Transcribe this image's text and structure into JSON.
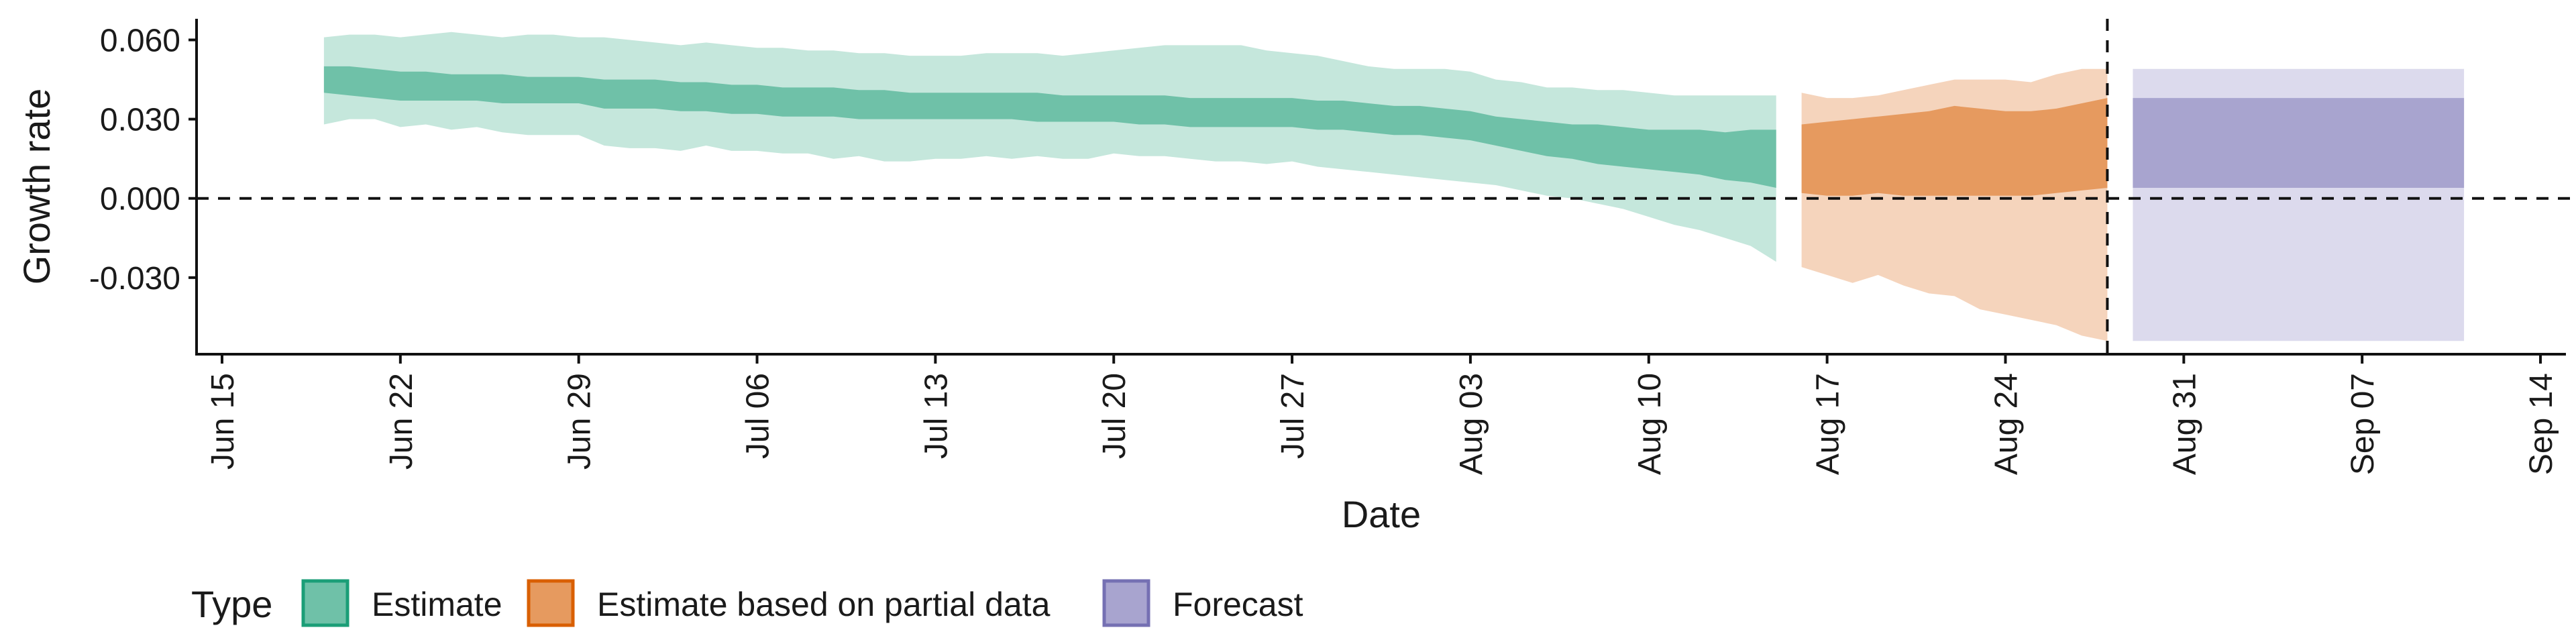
{
  "chart_data": {
    "type": "area",
    "xlabel": "Date",
    "ylabel": "Growth rate",
    "x_ticks": [
      "Jun 15",
      "Jun 22",
      "Jun 29",
      "Jul 06",
      "Jul 13",
      "Jul 20",
      "Jul 27",
      "Aug 03",
      "Aug 10",
      "Aug 17",
      "Aug 24",
      "Aug 31",
      "Sep 07",
      "Sep 14"
    ],
    "y_ticks": [
      "0.060",
      "0.030",
      "0.000",
      "-0.030"
    ],
    "xlim": [
      "2020-06-14",
      "2020-09-15"
    ],
    "ylim": [
      -0.059,
      0.068
    ],
    "hline_y": 0,
    "vline_date": "2020-08-28",
    "grid": false,
    "legend": {
      "title": "Type",
      "position": "bottom-left",
      "entries": [
        {
          "label": "Estimate",
          "fill": "#6fc1a8",
          "border": "#1b9e77"
        },
        {
          "label": "Estimate based on partial data",
          "fill": "#e69a5f",
          "border": "#d95f02"
        },
        {
          "label": "Forecast",
          "fill": "#a8a4cf",
          "border": "#7570b3"
        }
      ]
    },
    "series": [
      {
        "name": "Estimate",
        "colors": {
          "inner": "#6fc1a8",
          "outer": "#c5e7dc"
        },
        "x": [
          "2020-06-19",
          "2020-06-20",
          "2020-06-21",
          "2020-06-22",
          "2020-06-23",
          "2020-06-24",
          "2020-06-25",
          "2020-06-26",
          "2020-06-27",
          "2020-06-28",
          "2020-06-29",
          "2020-06-30",
          "2020-07-01",
          "2020-07-02",
          "2020-07-03",
          "2020-07-04",
          "2020-07-05",
          "2020-07-06",
          "2020-07-07",
          "2020-07-08",
          "2020-07-09",
          "2020-07-10",
          "2020-07-11",
          "2020-07-12",
          "2020-07-13",
          "2020-07-14",
          "2020-07-15",
          "2020-07-16",
          "2020-07-17",
          "2020-07-18",
          "2020-07-19",
          "2020-07-20",
          "2020-07-21",
          "2020-07-22",
          "2020-07-23",
          "2020-07-24",
          "2020-07-25",
          "2020-07-26",
          "2020-07-27",
          "2020-07-28",
          "2020-07-29",
          "2020-07-30",
          "2020-07-31",
          "2020-08-01",
          "2020-08-02",
          "2020-08-03",
          "2020-08-04",
          "2020-08-05",
          "2020-08-06",
          "2020-08-07",
          "2020-08-08",
          "2020-08-09",
          "2020-08-10",
          "2020-08-11",
          "2020-08-12",
          "2020-08-13",
          "2020-08-14",
          "2020-08-15"
        ],
        "lower_90": [
          0.028,
          0.03,
          0.03,
          0.027,
          0.028,
          0.026,
          0.027,
          0.025,
          0.024,
          0.024,
          0.024,
          0.02,
          0.019,
          0.019,
          0.018,
          0.02,
          0.018,
          0.018,
          0.017,
          0.017,
          0.015,
          0.016,
          0.014,
          0.014,
          0.015,
          0.015,
          0.016,
          0.015,
          0.016,
          0.015,
          0.015,
          0.017,
          0.016,
          0.016,
          0.015,
          0.014,
          0.014,
          0.013,
          0.014,
          0.012,
          0.011,
          0.01,
          0.009,
          0.008,
          0.007,
          0.006,
          0.005,
          0.003,
          0.001,
          0.0,
          -0.002,
          -0.004,
          -0.007,
          -0.01,
          -0.012,
          -0.015,
          -0.018,
          -0.024
        ],
        "lower_50": [
          0.04,
          0.039,
          0.038,
          0.037,
          0.037,
          0.037,
          0.037,
          0.036,
          0.036,
          0.036,
          0.036,
          0.034,
          0.034,
          0.034,
          0.033,
          0.033,
          0.032,
          0.032,
          0.031,
          0.031,
          0.031,
          0.03,
          0.03,
          0.03,
          0.03,
          0.03,
          0.03,
          0.03,
          0.029,
          0.029,
          0.029,
          0.029,
          0.028,
          0.028,
          0.027,
          0.027,
          0.027,
          0.027,
          0.027,
          0.026,
          0.026,
          0.025,
          0.024,
          0.024,
          0.023,
          0.022,
          0.02,
          0.018,
          0.016,
          0.015,
          0.013,
          0.012,
          0.011,
          0.01,
          0.009,
          0.007,
          0.006,
          0.004
        ],
        "upper_50": [
          0.05,
          0.05,
          0.049,
          0.048,
          0.048,
          0.047,
          0.047,
          0.047,
          0.046,
          0.046,
          0.046,
          0.045,
          0.045,
          0.045,
          0.044,
          0.044,
          0.043,
          0.043,
          0.042,
          0.042,
          0.042,
          0.041,
          0.041,
          0.04,
          0.04,
          0.04,
          0.04,
          0.04,
          0.04,
          0.039,
          0.039,
          0.039,
          0.039,
          0.039,
          0.038,
          0.038,
          0.038,
          0.038,
          0.038,
          0.037,
          0.037,
          0.036,
          0.035,
          0.035,
          0.034,
          0.033,
          0.031,
          0.03,
          0.029,
          0.028,
          0.028,
          0.027,
          0.026,
          0.026,
          0.026,
          0.025,
          0.026,
          0.026
        ],
        "upper_90": [
          0.061,
          0.062,
          0.062,
          0.061,
          0.062,
          0.063,
          0.062,
          0.061,
          0.062,
          0.062,
          0.061,
          0.061,
          0.06,
          0.059,
          0.058,
          0.059,
          0.058,
          0.057,
          0.057,
          0.056,
          0.056,
          0.055,
          0.055,
          0.054,
          0.054,
          0.054,
          0.055,
          0.055,
          0.055,
          0.054,
          0.055,
          0.056,
          0.057,
          0.058,
          0.058,
          0.058,
          0.058,
          0.056,
          0.055,
          0.054,
          0.052,
          0.05,
          0.049,
          0.049,
          0.049,
          0.048,
          0.045,
          0.044,
          0.042,
          0.042,
          0.041,
          0.041,
          0.04,
          0.039,
          0.039,
          0.039,
          0.039,
          0.039
        ]
      },
      {
        "name": "Estimate based on partial data",
        "colors": {
          "inner": "#e69a5f",
          "outer": "#f5d4bc"
        },
        "x": [
          "2020-08-16",
          "2020-08-17",
          "2020-08-18",
          "2020-08-19",
          "2020-08-20",
          "2020-08-21",
          "2020-08-22",
          "2020-08-23",
          "2020-08-24",
          "2020-08-25",
          "2020-08-26",
          "2020-08-27",
          "2020-08-28"
        ],
        "lower_90": [
          -0.026,
          -0.029,
          -0.032,
          -0.029,
          -0.033,
          -0.036,
          -0.037,
          -0.042,
          -0.044,
          -0.046,
          -0.048,
          -0.052,
          -0.054
        ],
        "lower_50": [
          0.002,
          0.001,
          0.001,
          0.002,
          0.001,
          0.001,
          0.001,
          0.001,
          0.001,
          0.001,
          0.002,
          0.003,
          0.004
        ],
        "upper_50": [
          0.028,
          0.029,
          0.03,
          0.031,
          0.032,
          0.033,
          0.035,
          0.034,
          0.033,
          0.033,
          0.034,
          0.036,
          0.038
        ],
        "upper_90": [
          0.04,
          0.038,
          0.038,
          0.039,
          0.041,
          0.043,
          0.045,
          0.045,
          0.045,
          0.044,
          0.047,
          0.049,
          0.049
        ]
      },
      {
        "name": "Forecast",
        "colors": {
          "inner": "#a8a4cf",
          "outer": "#dcdaed"
        },
        "x": [
          "2020-08-29",
          "2020-09-11"
        ],
        "lower_90": [
          -0.054,
          -0.054
        ],
        "lower_50": [
          0.004,
          0.004
        ],
        "upper_50": [
          0.038,
          0.038
        ],
        "upper_90": [
          0.049,
          0.049
        ]
      }
    ]
  }
}
